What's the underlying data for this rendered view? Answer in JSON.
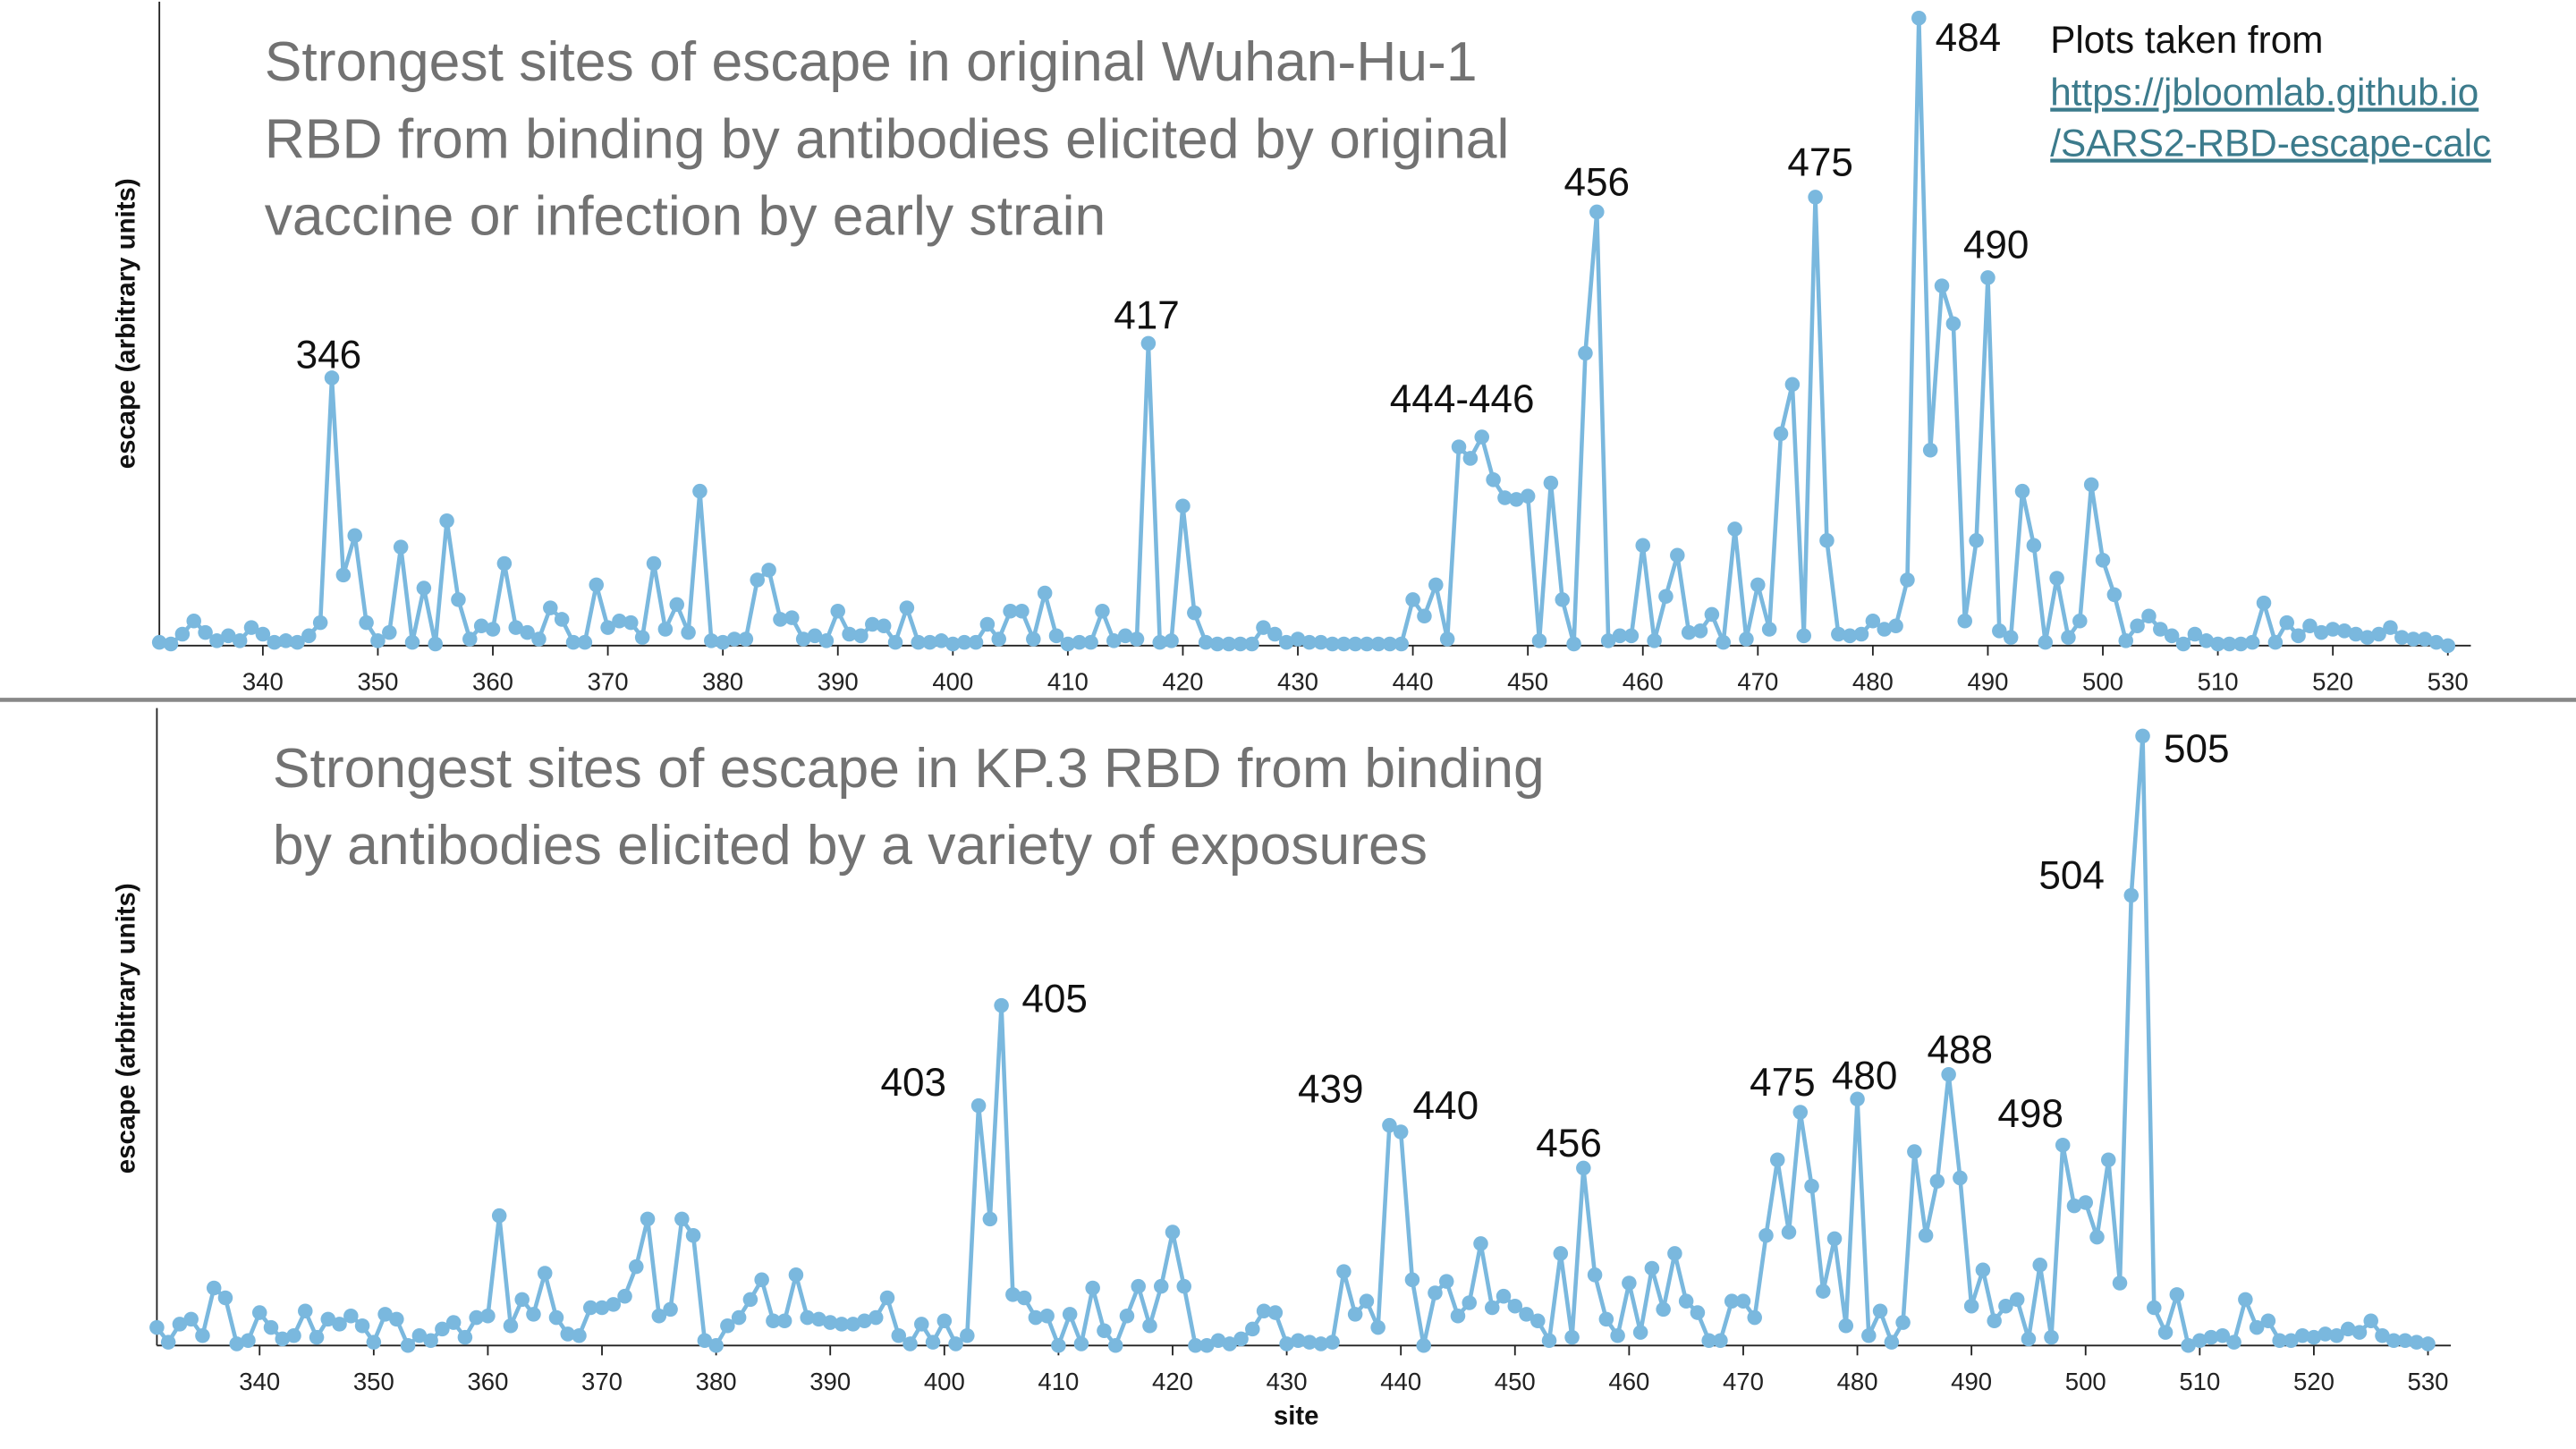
{
  "source": {
    "text": "Plots taken from",
    "link": [
      "https://jbloomlab.github.io",
      "/SARS2-RBD-escape-calc"
    ]
  },
  "chart_data": [
    {
      "type": "line",
      "title": [
        "Strongest sites of escape in original Wuhan-Hu-1",
        "RBD from binding by antibodies elicited by original",
        "vaccine or infection by early strain"
      ],
      "y_label": "escape (arbitrary units)",
      "color": "#7ab8de",
      "xlim": [
        331,
        532
      ],
      "ylim": [
        0,
        392
      ],
      "xticks": [
        340,
        350,
        360,
        370,
        380,
        390,
        400,
        410,
        420,
        430,
        440,
        450,
        460,
        470,
        480,
        490,
        500,
        510,
        520,
        530
      ],
      "annotations": [
        "346",
        "417",
        "444-446",
        "456",
        "475",
        "484",
        "490"
      ],
      "x": [
        331,
        332,
        333,
        334,
        335,
        336,
        337,
        338,
        339,
        340,
        341,
        342,
        343,
        344,
        345,
        346,
        347,
        348,
        349,
        350,
        351,
        352,
        353,
        354,
        355,
        356,
        357,
        358,
        359,
        360,
        361,
        362,
        363,
        364,
        365,
        366,
        367,
        368,
        369,
        370,
        371,
        372,
        373,
        374,
        375,
        376,
        377,
        378,
        379,
        380,
        381,
        382,
        383,
        384,
        385,
        386,
        387,
        388,
        389,
        390,
        391,
        392,
        393,
        394,
        395,
        396,
        397,
        398,
        399,
        400,
        401,
        402,
        403,
        404,
        405,
        406,
        407,
        408,
        409,
        410,
        411,
        412,
        413,
        414,
        415,
        416,
        417,
        418,
        419,
        420,
        421,
        422,
        423,
        424,
        425,
        426,
        427,
        428,
        429,
        430,
        431,
        432,
        433,
        434,
        435,
        436,
        437,
        438,
        439,
        440,
        441,
        442,
        443,
        444,
        445,
        446,
        447,
        448,
        449,
        450,
        451,
        452,
        453,
        454,
        455,
        456,
        457,
        458,
        459,
        460,
        461,
        462,
        463,
        464,
        465,
        466,
        467,
        468,
        469,
        470,
        471,
        472,
        473,
        474,
        475,
        476,
        477,
        478,
        479,
        480,
        481,
        482,
        483,
        484,
        485,
        486,
        487,
        488,
        489,
        490,
        491,
        492,
        493,
        494,
        495,
        496,
        497,
        498,
        499,
        500,
        501,
        502,
        503,
        504,
        505,
        506,
        507,
        508,
        509,
        510,
        511,
        512,
        513,
        514,
        515,
        516,
        517,
        518,
        519,
        520,
        521,
        522,
        523,
        524,
        525,
        526,
        527,
        528,
        529,
        530
      ],
      "values": [
        2,
        1,
        7,
        15,
        8,
        3,
        6,
        3,
        11,
        7,
        2,
        3,
        2,
        6,
        14,
        163,
        43,
        67,
        14,
        3,
        8,
        60,
        2,
        35,
        1,
        76,
        28,
        4,
        12,
        10,
        50,
        11,
        8,
        4,
        23,
        16,
        2,
        2,
        37,
        11,
        15,
        14,
        5,
        50,
        10,
        25,
        8,
        94,
        3,
        2,
        4,
        4,
        40,
        46,
        16,
        17,
        4,
        6,
        3,
        21,
        7,
        6,
        13,
        12,
        2,
        23,
        2,
        2,
        3,
        1,
        2,
        2,
        13,
        4,
        21,
        21,
        4,
        32,
        6,
        1,
        2,
        2,
        21,
        3,
        6,
        4,
        184,
        2,
        3,
        85,
        20,
        2,
        1,
        1,
        1,
        1,
        11,
        7,
        2,
        4,
        2,
        2,
        1,
        1,
        1,
        1,
        1,
        1,
        1,
        28,
        18,
        37,
        4,
        121,
        114,
        127,
        101,
        90,
        89,
        91,
        3,
        99,
        28,
        1,
        178,
        264,
        3,
        6,
        6,
        61,
        3,
        30,
        55,
        8,
        9,
        19,
        2,
        71,
        4,
        37,
        10,
        129,
        159,
        6,
        273,
        64,
        7,
        6,
        7,
        15,
        10,
        12,
        40,
        382,
        119,
        219,
        196,
        15,
        64,
        224,
        9,
        5,
        94,
        61,
        2,
        41,
        5,
        15,
        98,
        52,
        31,
        3,
        12,
        18,
        10,
        6,
        1,
        7,
        3,
        1,
        1,
        1,
        2,
        26,
        2,
        14,
        6,
        12,
        8,
        10,
        9,
        7,
        5,
        7,
        11,
        5,
        4,
        4,
        2,
        0
      ]
    },
    {
      "type": "line",
      "title": [
        "Strongest sites of escape in KP.3 RBD from binding",
        "by antibodies elicited by a variety of exposures"
      ],
      "y_label": "escape (arbitrary units)",
      "x_label": "site",
      "color": "#7ab8de",
      "xlim": [
        331,
        532
      ],
      "ylim": [
        0,
        388
      ],
      "xticks": [
        340,
        350,
        360,
        370,
        380,
        390,
        400,
        410,
        420,
        430,
        440,
        450,
        460,
        470,
        480,
        490,
        500,
        510,
        520,
        530
      ],
      "annotations": [
        "403",
        "405",
        "439",
        "440",
        "456",
        "475",
        "480",
        "488",
        "498",
        "504",
        "505"
      ],
      "x": [
        331,
        332,
        333,
        334,
        335,
        336,
        337,
        338,
        339,
        340,
        341,
        342,
        343,
        344,
        345,
        346,
        347,
        348,
        349,
        350,
        351,
        352,
        353,
        354,
        355,
        356,
        357,
        358,
        359,
        360,
        361,
        362,
        363,
        364,
        365,
        366,
        367,
        368,
        369,
        370,
        371,
        372,
        373,
        374,
        375,
        376,
        377,
        378,
        379,
        380,
        381,
        382,
        383,
        384,
        385,
        386,
        387,
        388,
        389,
        390,
        391,
        392,
        393,
        394,
        395,
        396,
        397,
        398,
        399,
        400,
        401,
        402,
        403,
        404,
        405,
        406,
        407,
        408,
        409,
        410,
        411,
        412,
        413,
        414,
        415,
        416,
        417,
        418,
        419,
        420,
        421,
        422,
        423,
        424,
        425,
        426,
        427,
        428,
        429,
        430,
        431,
        432,
        433,
        434,
        435,
        436,
        437,
        438,
        439,
        440,
        441,
        442,
        443,
        444,
        445,
        446,
        447,
        448,
        449,
        450,
        451,
        452,
        453,
        454,
        455,
        456,
        457,
        458,
        459,
        460,
        461,
        462,
        463,
        464,
        465,
        466,
        467,
        468,
        469,
        470,
        471,
        472,
        473,
        474,
        475,
        476,
        477,
        478,
        479,
        480,
        481,
        482,
        483,
        484,
        485,
        486,
        487,
        488,
        489,
        490,
        491,
        492,
        493,
        494,
        495,
        496,
        497,
        498,
        499,
        500,
        501,
        502,
        503,
        504,
        505,
        506,
        507,
        508,
        509,
        510,
        511,
        512,
        513,
        514,
        515,
        516,
        517,
        518,
        519,
        520,
        521,
        522,
        523,
        524,
        525,
        526,
        527,
        528,
        529,
        530
      ],
      "values": [
        11,
        2,
        13,
        16,
        6,
        35,
        29,
        1,
        3,
        20,
        11,
        4,
        6,
        21,
        5,
        16,
        13,
        18,
        12,
        2,
        19,
        16,
        0,
        6,
        3,
        10,
        14,
        5,
        17,
        18,
        79,
        12,
        28,
        19,
        44,
        17,
        7,
        6,
        23,
        23,
        25,
        30,
        48,
        77,
        18,
        22,
        77,
        67,
        3,
        0,
        12,
        17,
        28,
        40,
        15,
        15,
        43,
        17,
        16,
        14,
        13,
        13,
        15,
        17,
        29,
        6,
        1,
        13,
        2,
        15,
        1,
        6,
        146,
        77,
        207,
        31,
        29,
        17,
        18,
        0,
        19,
        1,
        35,
        9,
        0,
        18,
        36,
        12,
        36,
        69,
        36,
        0,
        0,
        3,
        1,
        4,
        10,
        21,
        20,
        1,
        3,
        2,
        1,
        2,
        45,
        19,
        27,
        11,
        134,
        130,
        40,
        0,
        32,
        39,
        18,
        26,
        62,
        23,
        30,
        24,
        19,
        15,
        3,
        56,
        5,
        108,
        43,
        16,
        6,
        38,
        8,
        47,
        22,
        56,
        27,
        20,
        3,
        3,
        27,
        27,
        17,
        67,
        113,
        69,
        142,
        97,
        33,
        65,
        12,
        150,
        6,
        21,
        2,
        14,
        118,
        67,
        100,
        165,
        102,
        24,
        46,
        15,
        24,
        28,
        4,
        49,
        5,
        122,
        85,
        87,
        66,
        113,
        38,
        274,
        371,
        23,
        8,
        31,
        0,
        3,
        5,
        6,
        2,
        28,
        11,
        15,
        3,
        3,
        6,
        5,
        7,
        6,
        10,
        8,
        15,
        6,
        3,
        3,
        2,
        1
      ]
    }
  ]
}
